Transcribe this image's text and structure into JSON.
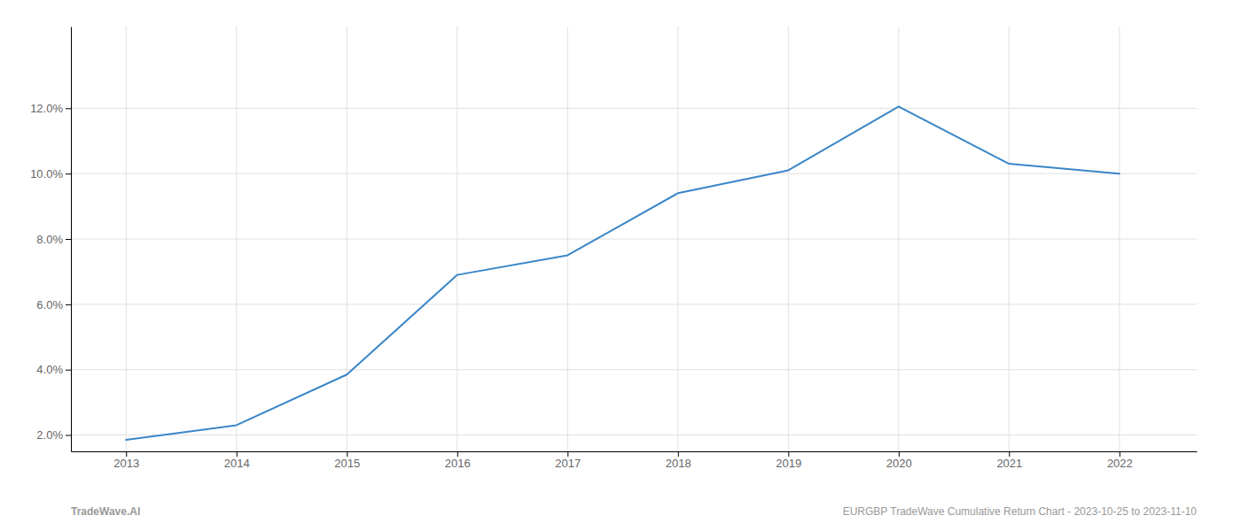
{
  "chart_data": {
    "type": "line",
    "x": [
      2013,
      2014,
      2015,
      2016,
      2017,
      2018,
      2019,
      2020,
      2021,
      2022
    ],
    "values": [
      1.85,
      2.3,
      3.85,
      6.9,
      7.5,
      9.4,
      10.1,
      12.05,
      10.3,
      10.0
    ],
    "color": "#3a86c8",
    "xlim": [
      2012.5,
      2022.7
    ],
    "xticks": [
      2013,
      2014,
      2015,
      2016,
      2017,
      2018,
      2019,
      2020,
      2021,
      2022
    ],
    "ylim": [
      1.5,
      14.5
    ],
    "yticks": [
      {
        "value": 2.0,
        "label": "2.0%"
      },
      {
        "value": 4.0,
        "label": "4.0%"
      },
      {
        "value": 6.0,
        "label": "6.0%"
      },
      {
        "value": 8.0,
        "label": "8.0%"
      },
      {
        "value": 10.0,
        "label": "10.0%"
      },
      {
        "value": 12.0,
        "label": "12.0%"
      }
    ],
    "grid": true,
    "annotations": [
      "TradeWave.AI",
      "EURGBP TradeWave Cumulative Return Chart - 2023-10-25 to 2023-11-10"
    ]
  }
}
